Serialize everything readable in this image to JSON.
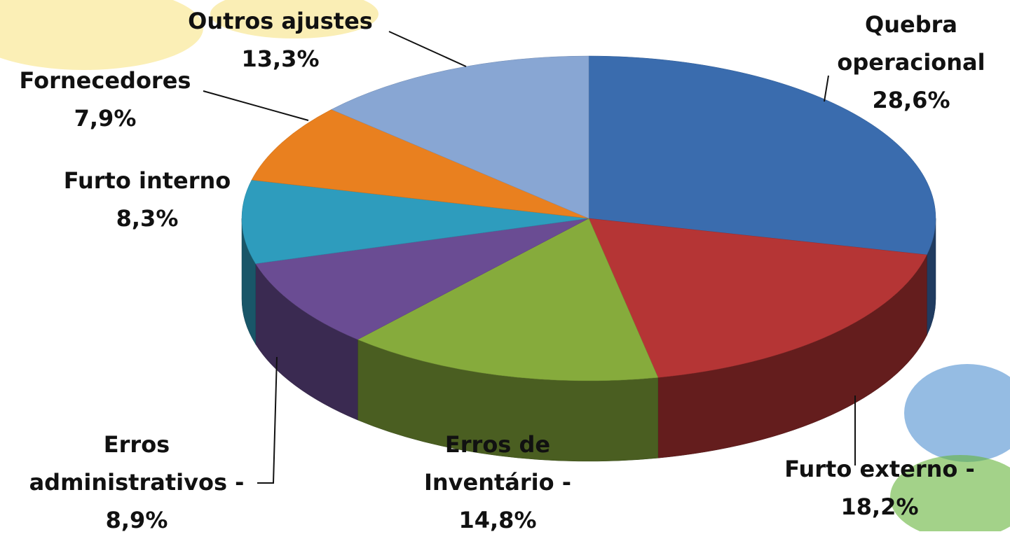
{
  "chart_data": {
    "type": "pie",
    "categories": [
      "Quebra operacional",
      "Furto externo -",
      "Erros de Inventário -",
      "Erros administrativos -",
      "Furto interno",
      "Fornecedores",
      "Outros ajustes"
    ],
    "values": [
      28.6,
      18.2,
      14.8,
      8.9,
      8.3,
      7.9,
      13.3
    ],
    "value_labels": [
      "28,6%",
      "18,2%",
      "14,8%",
      "8,9%",
      "8,3%",
      "7,9%",
      "13,3%"
    ],
    "colors": [
      "#3a6cae",
      "#b53535",
      "#86ab3c",
      "#6a4c93",
      "#2e9cbd",
      "#e9801f",
      "#88a6d3"
    ]
  }
}
